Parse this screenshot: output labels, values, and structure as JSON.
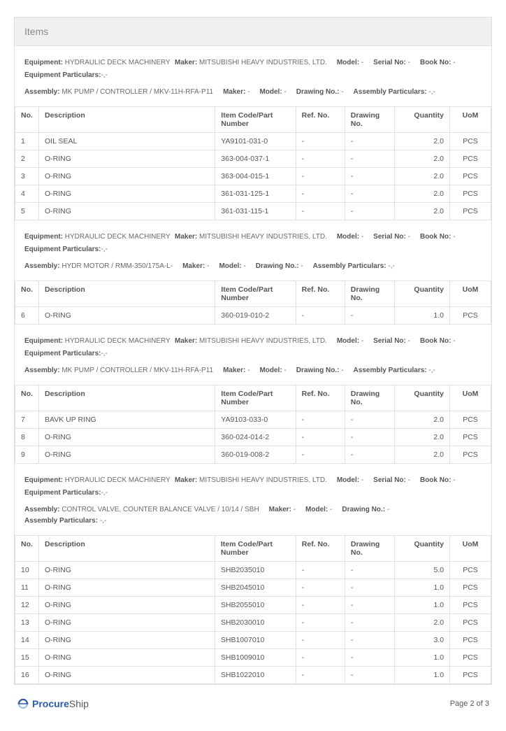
{
  "header": {
    "title": "Items"
  },
  "table_headers": {
    "no": "No.",
    "description": "Description",
    "item_code": "Item Code/Part Number",
    "ref_no": "Ref. No.",
    "drawing_no": "Drawing No.",
    "quantity": "Quantity",
    "uom": "UoM"
  },
  "labels": {
    "equipment": "Equipment:",
    "maker": "Maker:",
    "model": "Model:",
    "serial_no": "Serial No:",
    "book_no": "Book No:",
    "equipment_particulars": "Equipment Particulars:",
    "assembly": "Assembly:",
    "drawing_no": "Drawing No.:",
    "assembly_particulars": "Assembly Particulars:"
  },
  "sections": [
    {
      "equipment": "HYDRAULIC DECK MACHINERY",
      "maker": "MITSUBISHI HEAVY INDUSTRIES, LTD.",
      "model": "-",
      "serial_no": "-",
      "book_no": "-",
      "equipment_particulars": "-,-",
      "assembly": "MK PUMP / CONTROLLER / MKV-11H-RFA-P11",
      "asm_maker": "-",
      "asm_model": "-",
      "asm_drawing": "-",
      "asm_particulars": "-,-",
      "rows": [
        {
          "no": "1",
          "desc": "OIL SEAL",
          "item": "YA9101-031-0",
          "ref": "-",
          "draw": "-",
          "qty": "2.0",
          "uom": "PCS"
        },
        {
          "no": "2",
          "desc": "O-RING",
          "item": "363-004-037-1",
          "ref": "-",
          "draw": "-",
          "qty": "2.0",
          "uom": "PCS"
        },
        {
          "no": "3",
          "desc": "O-RING",
          "item": "363-004-015-1",
          "ref": "-",
          "draw": "-",
          "qty": "2.0",
          "uom": "PCS"
        },
        {
          "no": "4",
          "desc": "O-RING",
          "item": "361-031-125-1",
          "ref": "-",
          "draw": "-",
          "qty": "2.0",
          "uom": "PCS"
        },
        {
          "no": "5",
          "desc": "O-RING",
          "item": "361-031-115-1",
          "ref": "-",
          "draw": "-",
          "qty": "2.0",
          "uom": "PCS"
        }
      ]
    },
    {
      "equipment": "HYDRAULIC DECK MACHINERY",
      "maker": "MITSUBISHI HEAVY INDUSTRIES, LTD.",
      "model": "-",
      "serial_no": "-",
      "book_no": "-",
      "equipment_particulars": "-,-",
      "assembly": "HYDR MOTOR / RMM-350/175A-L-",
      "asm_maker": "-",
      "asm_model": "-",
      "asm_drawing": "-",
      "asm_particulars": "-,-",
      "rows": [
        {
          "no": "6",
          "desc": "O-RING",
          "item": "360-019-010-2",
          "ref": "-",
          "draw": "-",
          "qty": "1.0",
          "uom": "PCS"
        }
      ]
    },
    {
      "equipment": "HYDRAULIC DECK MACHINERY",
      "maker": "MITSUBISHI HEAVY INDUSTRIES, LTD.",
      "model": "-",
      "serial_no": "-",
      "book_no": "-",
      "equipment_particulars": "-,-",
      "assembly": "MK PUMP / CONTROLLER / MKV-11H-RFA-P11",
      "asm_maker": "-",
      "asm_model": "-",
      "asm_drawing": "-",
      "asm_particulars": "-,-",
      "rows": [
        {
          "no": "7",
          "desc": "BAVK UP RING",
          "item": "YA9103-033-0",
          "ref": "-",
          "draw": "-",
          "qty": "2.0",
          "uom": "PCS"
        },
        {
          "no": "8",
          "desc": "O-RING",
          "item": "360-024-014-2",
          "ref": "-",
          "draw": "-",
          "qty": "2.0",
          "uom": "PCS"
        },
        {
          "no": "9",
          "desc": "O-RING",
          "item": "360-019-008-2",
          "ref": "-",
          "draw": "-",
          "qty": "2.0",
          "uom": "PCS"
        }
      ]
    },
    {
      "equipment": "HYDRAULIC DECK MACHINERY",
      "maker": "MITSUBISHI HEAVY INDUSTRIES, LTD.",
      "model": "-",
      "serial_no": "-",
      "book_no": "-",
      "equipment_particulars": "-,-",
      "assembly": "CONTROL VALVE, COUNTER BALANCE VALVE / 10/14 / SBH",
      "asm_maker": "-",
      "asm_model": "-",
      "asm_drawing": "-",
      "asm_particulars": "-,-",
      "rows": [
        {
          "no": "10",
          "desc": "O-RING",
          "item": "SHB2035010",
          "ref": "-",
          "draw": "-",
          "qty": "5.0",
          "uom": "PCS"
        },
        {
          "no": "11",
          "desc": "O-RING",
          "item": "SHB2045010",
          "ref": "-",
          "draw": "-",
          "qty": "1.0",
          "uom": "PCS"
        },
        {
          "no": "12",
          "desc": "O-RING",
          "item": "SHB2055010",
          "ref": "-",
          "draw": "-",
          "qty": "1.0",
          "uom": "PCS"
        },
        {
          "no": "13",
          "desc": "O-RING",
          "item": "SHB2030010",
          "ref": "-",
          "draw": "-",
          "qty": "2.0",
          "uom": "PCS"
        },
        {
          "no": "14",
          "desc": "O-RING",
          "item": "SHB1007010",
          "ref": "-",
          "draw": "-",
          "qty": "3.0",
          "uom": "PCS"
        },
        {
          "no": "15",
          "desc": "O-RING",
          "item": "SHB1009010",
          "ref": "-",
          "draw": "-",
          "qty": "1.0",
          "uom": "PCS"
        },
        {
          "no": "16",
          "desc": "O-RING",
          "item": "SHB1022010",
          "ref": "-",
          "draw": "-",
          "qty": "1.0",
          "uom": "PCS"
        }
      ]
    }
  ],
  "footer": {
    "brand_procure": "Procure",
    "brand_ship": "Ship",
    "page_label": "Page 2 of 3"
  }
}
